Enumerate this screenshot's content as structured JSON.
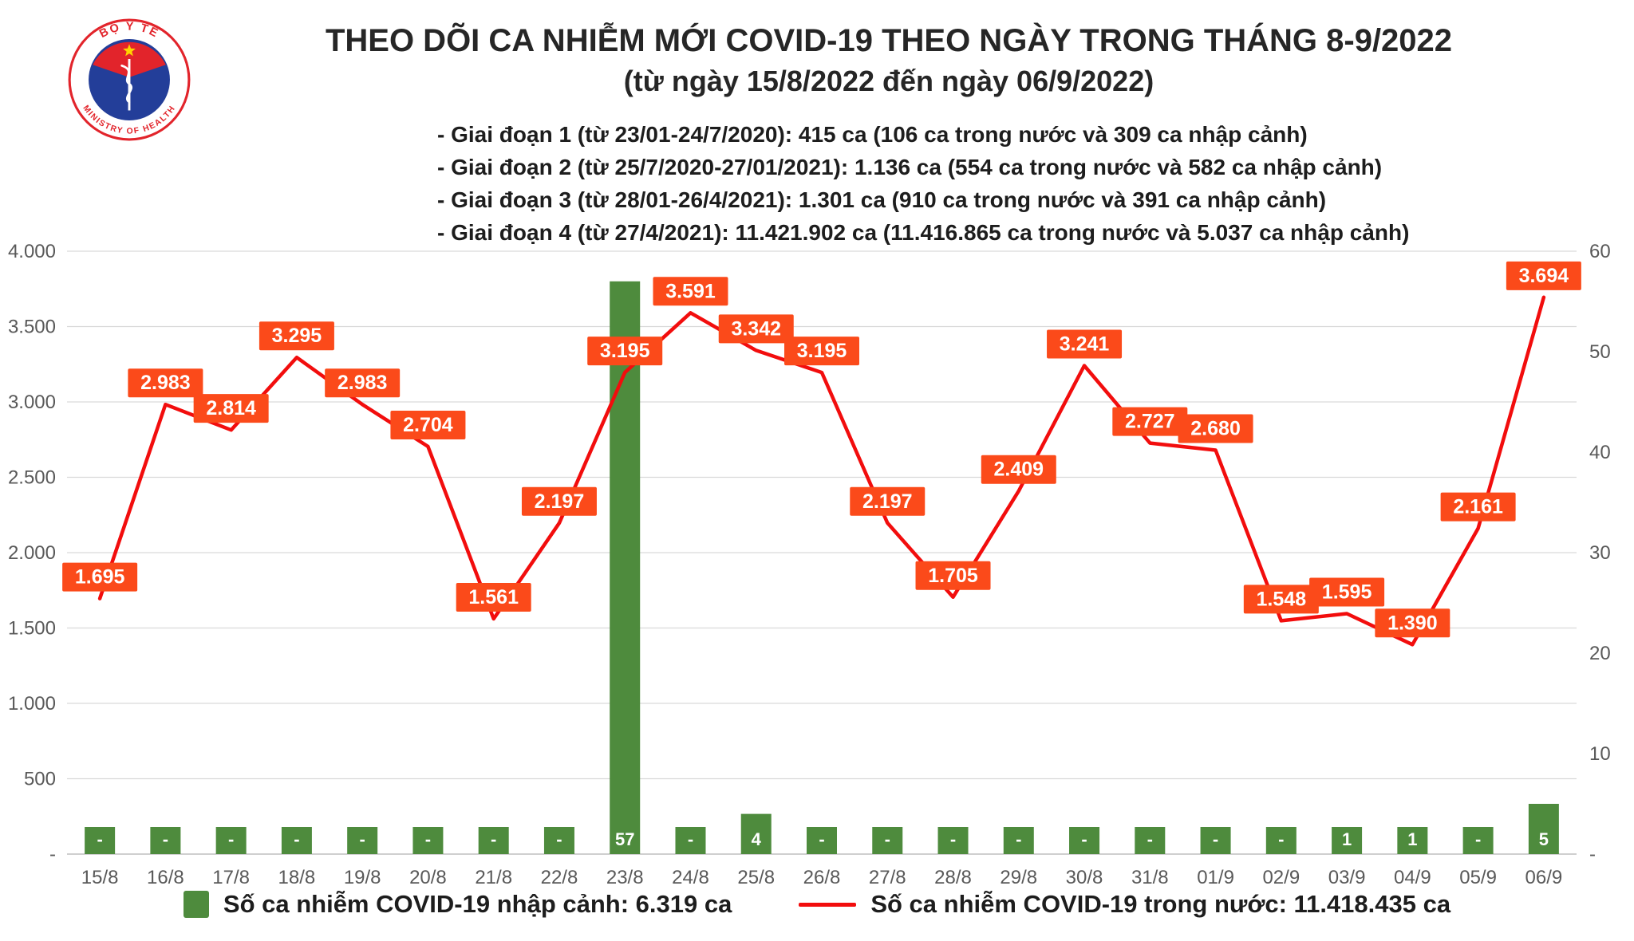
{
  "header": {
    "logo": {
      "top": "BỘ Y TẾ",
      "bottom": "MINISTRY OF HEALTH"
    },
    "title": "THEO DÕI CA NHIỄM MỚI COVID-19 THEO NGÀY TRONG THÁNG 8-9/2022",
    "subtitle": "(từ ngày 15/8/2022 đến ngày 06/9/2022)",
    "phases": [
      "- Giai đoạn 1 (từ 23/01-24/7/2020): 415 ca (106 ca trong nước và 309 ca nhập cảnh)",
      "- Giai đoạn 2 (từ 25/7/2020-27/01/2021): 1.136 ca (554 ca trong nước và 582 ca nhập cảnh)",
      "- Giai đoạn 3 (từ 28/01-26/4/2021): 1.301 ca (910 ca trong nước và 391 ca nhập cảnh)",
      "- Giai đoạn 4 (từ 27/4/2021): 11.421.902 ca (11.416.865 ca trong nước và 5.037 ca nhập cảnh)"
    ]
  },
  "chart_data": {
    "type": "bar",
    "subtype": "combo-bar-line",
    "title": "THEO DÕI CA NHIỄM MỚI COVID-19 THEO NGÀY TRONG THÁNG 8-9/2022",
    "subtitle": "(từ ngày 15/8/2022 đến ngày 06/9/2022)",
    "grid": "horizontal",
    "categories": [
      "15/8",
      "16/8",
      "17/8",
      "18/8",
      "19/8",
      "20/8",
      "21/8",
      "22/8",
      "23/8",
      "24/8",
      "25/8",
      "26/8",
      "27/8",
      "28/8",
      "29/8",
      "30/8",
      "31/8",
      "01/9",
      "02/9",
      "03/9",
      "04/9",
      "05/9",
      "06/9"
    ],
    "series": [
      {
        "name": "Số ca nhiễm COVID-19 trong nước",
        "type": "line",
        "axis": "left",
        "color": "#f20d0d",
        "values": [
          1695,
          2983,
          2814,
          3295,
          2983,
          2704,
          1561,
          2197,
          3195,
          3591,
          3342,
          3195,
          2197,
          1705,
          2409,
          3241,
          2727,
          2680,
          1548,
          1595,
          1390,
          2161,
          3694
        ],
        "labels": [
          "1.695",
          "2.983",
          "2.814",
          "3.295",
          "2.983",
          "2.704",
          "1.561",
          "2.197",
          "3.195",
          "3.591",
          "3.342",
          "3.195",
          "2.197",
          "1.705",
          "2.409",
          "3.241",
          "2.727",
          "2.680",
          "1.548",
          "1.595",
          "1.390",
          "2.161",
          "3.694"
        ],
        "label_color": "#fb4a1a"
      },
      {
        "name": "Số ca nhiễm COVID-19 nhập cảnh",
        "type": "bar",
        "axis": "right",
        "color": "#4e8b3d",
        "values": [
          0,
          0,
          0,
          0,
          0,
          0,
          0,
          0,
          57,
          0,
          4,
          0,
          0,
          0,
          0,
          0,
          0,
          0,
          0,
          1,
          1,
          0,
          5
        ],
        "labels": [
          "-",
          "-",
          "-",
          "-",
          "-",
          "-",
          "-",
          "-",
          "57",
          "-",
          "4",
          "-",
          "-",
          "-",
          "-",
          "-",
          "-",
          "-",
          "-",
          "1",
          "1",
          "-",
          "5"
        ]
      }
    ],
    "left_axis": {
      "min": 0,
      "max": 4000,
      "ticks": [
        "-",
        "500",
        "1.000",
        "1.500",
        "2.000",
        "2.500",
        "3.000",
        "3.500",
        "4.000"
      ]
    },
    "right_axis": {
      "min": 0,
      "max": 60,
      "ticks": [
        "-",
        "10",
        "20",
        "30",
        "40",
        "50",
        "60"
      ]
    },
    "legend_position": "bottom"
  },
  "legend": [
    {
      "swatch": "bar",
      "color": "#4e8b3d",
      "label": "Số ca nhiễm COVID-19 nhập cảnh: 6.319 ca"
    },
    {
      "swatch": "line",
      "color": "#f20d0d",
      "label": "Số ca nhiễm COVID-19 trong nước: 11.418.435 ca"
    }
  ]
}
